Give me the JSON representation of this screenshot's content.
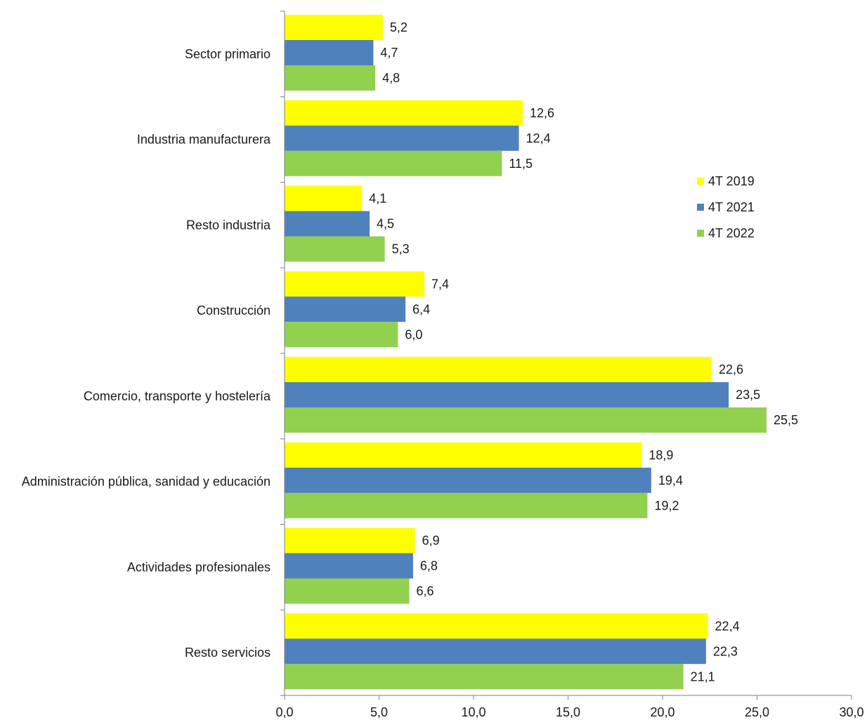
{
  "chart_data": {
    "type": "bar",
    "orientation": "horizontal",
    "categories": [
      "Sector primario",
      "Industria manufacturera",
      "Resto industria",
      "Construcción",
      "Comercio, transporte y hostelería",
      "Administración pública, sanidad y educación",
      "Actividades profesionales",
      "Resto servicios"
    ],
    "series": [
      {
        "name": "4T 2019",
        "color": "#ffff00",
        "values": [
          5.2,
          12.6,
          4.1,
          7.4,
          22.6,
          18.9,
          6.9,
          22.4
        ]
      },
      {
        "name": "4T 2021",
        "color": "#4f81bd",
        "values": [
          4.7,
          12.4,
          4.5,
          6.4,
          23.5,
          19.4,
          6.8,
          22.3
        ]
      },
      {
        "name": "4T 2022",
        "color": "#92d050",
        "values": [
          4.8,
          11.5,
          5.3,
          6.0,
          25.5,
          19.2,
          6.6,
          21.1
        ]
      }
    ],
    "value_labels": [
      [
        "5,2",
        "4,7",
        "4,8"
      ],
      [
        "12,6",
        "12,4",
        "11,5"
      ],
      [
        "4,1",
        "4,5",
        "5,3"
      ],
      [
        "7,4",
        "6,4",
        "6,0"
      ],
      [
        "22,6",
        "23,5",
        "25,5"
      ],
      [
        "18,9",
        "19,4",
        "19,2"
      ],
      [
        "6,9",
        "6,8",
        "6,6"
      ],
      [
        "22,4",
        "22,3",
        "21,1"
      ]
    ],
    "xlim": [
      0,
      30
    ],
    "x_ticks": [
      "0,0",
      "5,0",
      "10,0",
      "15,0",
      "20,0",
      "25,0",
      "30,0"
    ],
    "title": "",
    "xlabel": "",
    "ylabel": "",
    "grid": false,
    "legend_position": "right"
  }
}
